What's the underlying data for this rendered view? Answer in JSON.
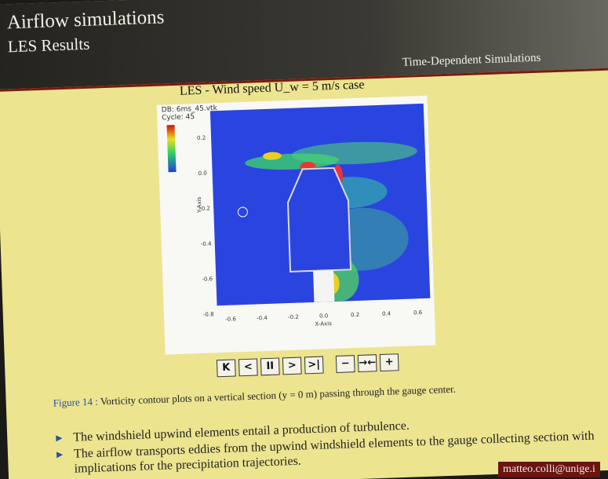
{
  "header": {
    "title": "Airflow simulations",
    "subtitle": "LES Results",
    "section": "Time-Dependent Simulations"
  },
  "figure": {
    "title": "LES - Wind speed U_w = 5 m/s case",
    "db": "DB: 6ms_45.vtk",
    "cycle": "Cycle: 45",
    "y_ticks": [
      "0.2",
      "0.0",
      "-0.2",
      "-0.4",
      "-0.6",
      "-0.8"
    ],
    "x_ticks": [
      "-0.6",
      "-0.4",
      "-0.2",
      "0.0",
      "0.2",
      "0.4",
      "0.6"
    ],
    "y_axis": "Y-Axis",
    "x_axis": "X-Axis",
    "controls": [
      "K",
      "<",
      "II",
      ">",
      ">|",
      "−",
      "→←",
      "+"
    ]
  },
  "caption": {
    "label": "Figure 14 :",
    "text": "Vorticity contour plots on a vertical section (y = 0 m) passing through the gauge center."
  },
  "bullets": [
    "The windshield upwind elements entail a production of turbulence.",
    "The airflow transports eddies from the upwind windshield elements to the gauge collecting section with implications for the precipitation trajectories."
  ],
  "footer": {
    "email": "matteo.colli@unige.i"
  }
}
